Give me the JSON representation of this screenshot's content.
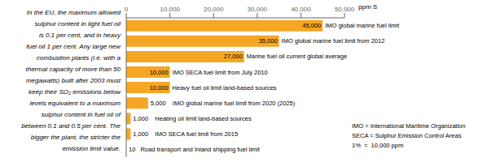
{
  "chart_data": {
    "type": "bar",
    "orientation": "horizontal",
    "categories": [
      "IMO global marine fuel limit",
      "IMO global marine fuel limit from 2012",
      "Marine fuel oil current global average",
      "IMO SECA fuel limit from July 2010",
      "Heavy fuel oil limit land-based sources",
      "IMO global marine fuel limit from 2020 (2025)",
      "Heating oil limit land-based sources",
      "IMO SECA fuel limit from 2015",
      "Road transport and Inland shipping fuel limit"
    ],
    "values": [
      45000,
      35000,
      27000,
      10000,
      10000,
      5000,
      1000,
      1000,
      10
    ],
    "value_labels": [
      "45,000",
      "35,000",
      "27,000",
      "10,000",
      "10,000",
      "5,000",
      "1,000",
      "1,000",
      "10"
    ],
    "data_labels": true,
    "color": "#F5A623",
    "xlabel": "ppm S",
    "xlim": [
      0,
      50000
    ],
    "xticks": [
      0,
      {
        "value": 10000,
        "label": "10,000"
      },
      {
        "value": 20000,
        "label": "20,000"
      },
      {
        "value": 30000,
        "label": "30,000"
      },
      {
        "value": 40000,
        "label": "40,000"
      },
      {
        "value": 50000,
        "label": "50,000"
      }
    ],
    "tick_labels": "x",
    "grid": false,
    "annotations": [
      [
        "In the EU, the maximum allowed",
        "sulphur content in light fuel oil",
        "is 0.1 per cent, and in heavy",
        "fuel oil 1 per cent. Any large new",
        "combustion plants (i.e. with a",
        "thermal capacity of more than 50",
        "megawatts) built after 2003 must",
        "keep their SO₂ emissions below",
        "levels equivalent to a maximum",
        "sulphur content in fuel oil of",
        "between 0.1 and 0.5 per cent. The",
        "bigger the plant, the stricter the",
        "emission limit value."
      ],
      [
        "IMO = International Maritime Organization",
        "SECA = Sulphur Emission Control Areas",
        "1%  =  10,000 ppm"
      ]
    ]
  }
}
